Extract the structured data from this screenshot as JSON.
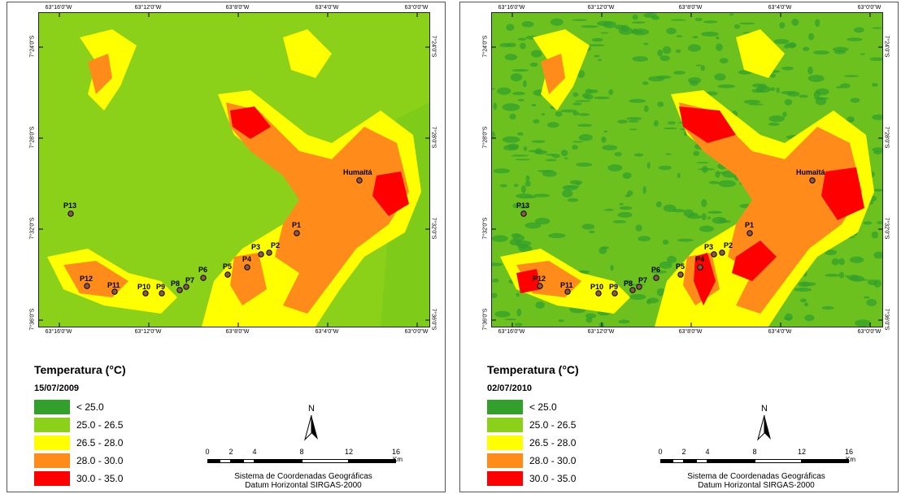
{
  "legend": {
    "title": "Temperatura (°C)",
    "classes": [
      {
        "label": "< 25.0",
        "color": "#33a02c"
      },
      {
        "label": "25.0 - 26.5",
        "color": "#8bd11a"
      },
      {
        "label": "26.5 - 28.0",
        "color": "#ffff00"
      },
      {
        "label": "28.0 - 30.0",
        "color": "#ff8c1a"
      },
      {
        "label": "30.0 - 35.0",
        "color": "#ff0000"
      }
    ]
  },
  "axes": {
    "longitudes": [
      "63°16'0\"W",
      "63°12'0\"W",
      "63°8'0\"W",
      "63°4'0\"W",
      "63°0'0\"W"
    ],
    "latitudes": [
      "7°24'0\"S",
      "7°28'0\"S",
      "7°32'0\"S",
      "7°36'0\"S"
    ]
  },
  "scale_bar": {
    "labels": [
      "0",
      "2",
      "4",
      "8",
      "12",
      "16"
    ],
    "unit": "Km"
  },
  "north_arrow": {
    "label": "N"
  },
  "coordinate_system": {
    "line1": "Sistema de Coordenadas Geográficas",
    "line2": "Datum Horizontal SIRGAS-2000"
  },
  "places": [
    "Humaitá",
    "P1",
    "P2",
    "P3",
    "P4",
    "P5",
    "P6",
    "P7",
    "P8",
    "P9",
    "P10",
    "P11",
    "P12",
    "P13"
  ],
  "maps": [
    {
      "date": "15/07/2009",
      "background_color": "#8bd11a"
    },
    {
      "date": "02/07/2010",
      "background_color": "#6cc11e"
    }
  ]
}
